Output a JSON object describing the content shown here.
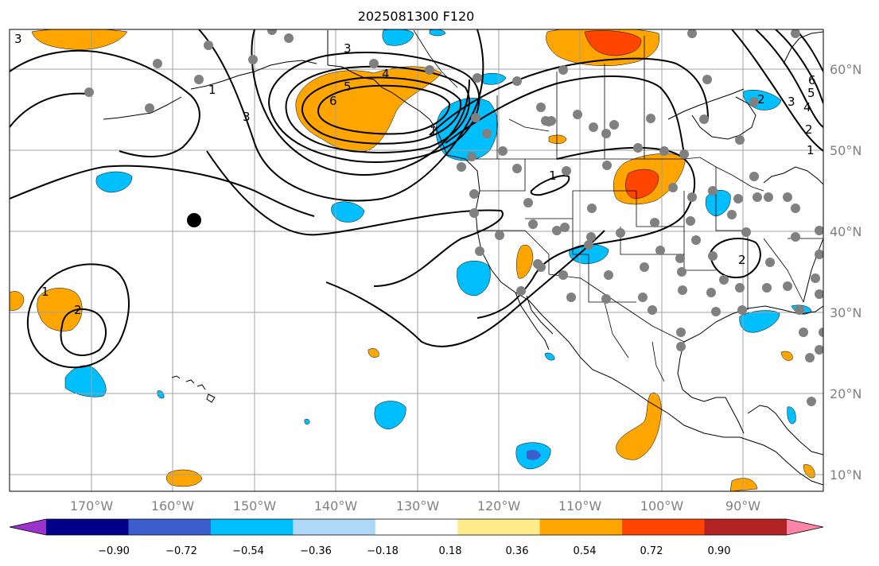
{
  "title": "2025081300 F120",
  "map": {
    "lat_labels": [
      "60°N",
      "50°N",
      "40°N",
      "30°N",
      "20°N",
      "10°N"
    ],
    "lon_labels": [
      "170°W",
      "160°W",
      "150°W",
      "140°W",
      "130°W",
      "120°W",
      "110°W",
      "100°W",
      "90°W"
    ],
    "contour_labels": [
      "3",
      "3",
      "3",
      "6",
      "5",
      "4",
      "2",
      "2",
      "1",
      "1",
      "2",
      "3",
      "4",
      "5",
      "6",
      "1",
      "1",
      "2",
      "1"
    ]
  },
  "colorbar": {
    "colors": [
      "#9933cc",
      "#00008b",
      "#3a5fcd",
      "#00bfff",
      "#add8f7",
      "#ffffff",
      "#ffeb8a",
      "#ffa500",
      "#ff4500",
      "#b22222",
      "#ff85a8"
    ],
    "extend_low_color": "#9933cc",
    "extend_high_color": "#ff85a8",
    "ticks": [
      "−0.90",
      "−0.72",
      "−0.54",
      "−0.36",
      "−0.18",
      "0.18",
      "0.36",
      "0.54",
      "0.72",
      "0.90"
    ]
  },
  "colors": {
    "positive_light": "#ffa500",
    "positive_strong": "#ff4500",
    "negative_light": "#00bfff",
    "negative_strong": "#3a5fcd",
    "station_dot": "#808080"
  }
}
